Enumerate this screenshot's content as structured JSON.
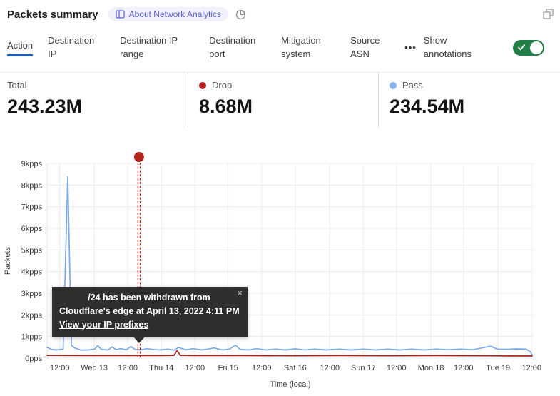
{
  "header": {
    "title": "Packets summary",
    "badge_label": "About Network Analytics"
  },
  "tabs": {
    "items": [
      {
        "label": "Action",
        "active": true
      },
      {
        "label": "Destination IP",
        "active": false
      },
      {
        "label": "Destination IP range",
        "active": false
      },
      {
        "label": "Destination port",
        "active": false
      },
      {
        "label": "Mitigation system",
        "active": false
      },
      {
        "label": "Source ASN",
        "active": false
      }
    ],
    "more_label": "•••",
    "annotations_label": "Show annotations",
    "annotations_on": true,
    "active_underline_color": "#1f5fbf",
    "toggle_color": "#1f7d45"
  },
  "stats": [
    {
      "label": "Total",
      "value": "243.23M",
      "dot": null
    },
    {
      "label": "Drop",
      "value": "8.68M",
      "dot": "#b11d1c"
    },
    {
      "label": "Pass",
      "value": "234.54M",
      "dot": "#89b4ef"
    }
  ],
  "tooltip": {
    "line1": "/24 has been withdrawn from",
    "line2": "Cloudflare's edge at April 13, 2022 4:11 PM",
    "link": "View your IP prefixes",
    "close": "×"
  },
  "chart_data": {
    "type": "line",
    "title": "Packets summary",
    "ylabel": "Packets",
    "xlabel": "Time (local)",
    "y_unit": "kpps",
    "ylim": [
      0,
      9
    ],
    "grid": true,
    "y_ticks": [
      {
        "label": "0pps",
        "value": 0
      },
      {
        "label": "1kpps",
        "value": 1
      },
      {
        "label": "2kpps",
        "value": 2
      },
      {
        "label": "3kpps",
        "value": 3
      },
      {
        "label": "4kpps",
        "value": 4
      },
      {
        "label": "5kpps",
        "value": 5
      },
      {
        "label": "6kpps",
        "value": 6
      },
      {
        "label": "7kpps",
        "value": 7
      },
      {
        "label": "8kpps",
        "value": 8
      },
      {
        "label": "9kpps",
        "value": 9
      }
    ],
    "x_ticks": [
      {
        "label": "12:00",
        "pos": 0.026
      },
      {
        "label": "Wed 13",
        "pos": 0.097
      },
      {
        "label": "12:00",
        "pos": 0.166
      },
      {
        "label": "Thu 14",
        "pos": 0.235
      },
      {
        "label": "12:00",
        "pos": 0.304
      },
      {
        "label": "Fri 15",
        "pos": 0.372
      },
      {
        "label": "12:00",
        "pos": 0.441
      },
      {
        "label": "Sat 16",
        "pos": 0.51
      },
      {
        "label": "12:00",
        "pos": 0.581
      },
      {
        "label": "Sun 17",
        "pos": 0.65
      },
      {
        "label": "12:00",
        "pos": 0.718
      },
      {
        "label": "Mon 18",
        "pos": 0.789
      },
      {
        "label": "12:00",
        "pos": 0.856
      },
      {
        "label": "Tue 19",
        "pos": 0.927
      },
      {
        "label": "12:00",
        "pos": 0.996
      }
    ],
    "series": [
      {
        "name": "Pass",
        "color": "#79abe8",
        "points": [
          [
            0,
            0.5
          ],
          [
            0.01,
            0.4
          ],
          [
            0.02,
            0.38
          ],
          [
            0.033,
            0.42
          ],
          [
            0.0425,
            8.4
          ],
          [
            0.05,
            0.6
          ],
          [
            0.056,
            0.48
          ],
          [
            0.07,
            0.37
          ],
          [
            0.085,
            0.38
          ],
          [
            0.098,
            0.42
          ],
          [
            0.104,
            0.58
          ],
          [
            0.112,
            0.4
          ],
          [
            0.126,
            0.38
          ],
          [
            0.133,
            0.52
          ],
          [
            0.142,
            0.4
          ],
          [
            0.152,
            0.44
          ],
          [
            0.163,
            0.38
          ],
          [
            0.172,
            0.54
          ],
          [
            0.181,
            0.4
          ],
          [
            0.192,
            0.38
          ],
          [
            0.205,
            0.44
          ],
          [
            0.218,
            0.4
          ],
          [
            0.232,
            0.38
          ],
          [
            0.248,
            0.42
          ],
          [
            0.262,
            0.37
          ],
          [
            0.27,
            0.5
          ],
          [
            0.285,
            0.38
          ],
          [
            0.3,
            0.44
          ],
          [
            0.318,
            0.38
          ],
          [
            0.33,
            0.42
          ],
          [
            0.343,
            0.47
          ],
          [
            0.36,
            0.38
          ],
          [
            0.375,
            0.42
          ],
          [
            0.387,
            0.6
          ],
          [
            0.397,
            0.4
          ],
          [
            0.415,
            0.38
          ],
          [
            0.43,
            0.44
          ],
          [
            0.45,
            0.38
          ],
          [
            0.47,
            0.42
          ],
          [
            0.49,
            0.38
          ],
          [
            0.51,
            0.43
          ],
          [
            0.53,
            0.38
          ],
          [
            0.55,
            0.42
          ],
          [
            0.575,
            0.38
          ],
          [
            0.6,
            0.42
          ],
          [
            0.625,
            0.38
          ],
          [
            0.65,
            0.42
          ],
          [
            0.675,
            0.38
          ],
          [
            0.7,
            0.42
          ],
          [
            0.725,
            0.38
          ],
          [
            0.75,
            0.42
          ],
          [
            0.775,
            0.38
          ],
          [
            0.8,
            0.42
          ],
          [
            0.825,
            0.39
          ],
          [
            0.85,
            0.42
          ],
          [
            0.875,
            0.39
          ],
          [
            0.9,
            0.5
          ],
          [
            0.912,
            0.55
          ],
          [
            0.925,
            0.42
          ],
          [
            0.945,
            0.41
          ],
          [
            0.965,
            0.43
          ],
          [
            0.985,
            0.42
          ],
          [
            0.993,
            0.3
          ],
          [
            0.997,
            0.15
          ]
        ]
      },
      {
        "name": "Drop",
        "color": "#a8251f",
        "points": [
          [
            0,
            0.13
          ],
          [
            0.08,
            0.12
          ],
          [
            0.16,
            0.12
          ],
          [
            0.24,
            0.12
          ],
          [
            0.261,
            0.13
          ],
          [
            0.267,
            0.35
          ],
          [
            0.274,
            0.13
          ],
          [
            0.3,
            0.12
          ],
          [
            0.4,
            0.12
          ],
          [
            0.5,
            0.11
          ],
          [
            0.6,
            0.12
          ],
          [
            0.7,
            0.11
          ],
          [
            0.8,
            0.12
          ],
          [
            0.9,
            0.11
          ],
          [
            0.997,
            0.1
          ]
        ]
      }
    ],
    "annotation": {
      "pos": 0.189,
      "color": "#b2251a",
      "marker": "red-dot-with-dashed-vertical-line"
    }
  }
}
